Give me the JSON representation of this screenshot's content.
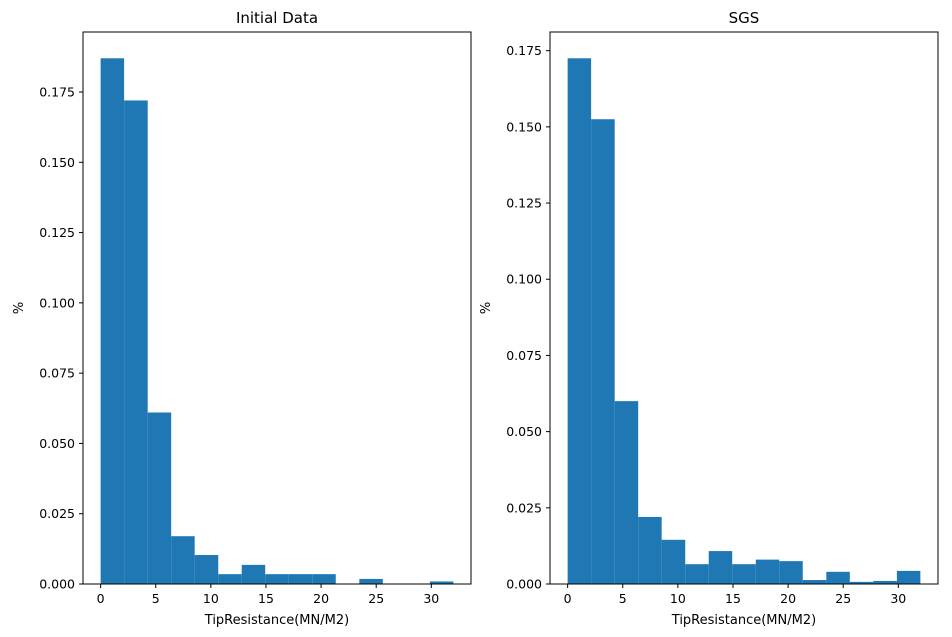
{
  "chart_data": [
    {
      "type": "bar",
      "title": "Initial Data",
      "xlabel": "TipResistance(MN/M2)",
      "ylabel": "%",
      "bin_edges": [
        0,
        2.13,
        4.27,
        6.4,
        8.53,
        10.67,
        12.8,
        14.93,
        17.07,
        19.2,
        21.33,
        23.47,
        25.6,
        27.73,
        29.87,
        32.0
      ],
      "values": [
        0.187,
        0.172,
        0.061,
        0.017,
        0.0103,
        0.0035,
        0.0068,
        0.0035,
        0.0035,
        0.0035,
        0.0,
        0.0018,
        0.0,
        0.0,
        0.0009
      ],
      "xlim": [
        -1.6,
        33.6
      ],
      "ylim": [
        0,
        0.19635
      ],
      "xticks": [
        0,
        5,
        10,
        15,
        20,
        25,
        30
      ],
      "yticks": [
        0.0,
        0.025,
        0.05,
        0.075,
        0.1,
        0.125,
        0.15,
        0.175
      ],
      "ytick_labels": [
        "0.000",
        "0.025",
        "0.050",
        "0.075",
        "0.100",
        "0.125",
        "0.150",
        "0.175"
      ],
      "color": "#1f77b4",
      "grid": false
    },
    {
      "type": "bar",
      "title": "SGS",
      "xlabel": "TipResistance(MN/M2)",
      "ylabel": "%",
      "bin_edges": [
        0,
        2.13,
        4.27,
        6.4,
        8.53,
        10.67,
        12.8,
        14.93,
        17.07,
        19.2,
        21.33,
        23.47,
        25.6,
        27.73,
        29.87,
        32.0
      ],
      "values": [
        0.1725,
        0.1525,
        0.06,
        0.022,
        0.0145,
        0.0065,
        0.0108,
        0.0065,
        0.008,
        0.0075,
        0.0013,
        0.004,
        0.0007,
        0.001,
        0.0043
      ],
      "xlim": [
        -1.6,
        33.6
      ],
      "ylim": [
        0,
        0.181125
      ],
      "xticks": [
        0,
        5,
        10,
        15,
        20,
        25,
        30
      ],
      "yticks": [
        0.0,
        0.025,
        0.05,
        0.075,
        0.1,
        0.125,
        0.15,
        0.175
      ],
      "ytick_labels": [
        "0.000",
        "0.025",
        "0.050",
        "0.075",
        "0.100",
        "0.125",
        "0.150",
        "0.175"
      ],
      "color": "#1f77b4",
      "grid": false
    }
  ]
}
